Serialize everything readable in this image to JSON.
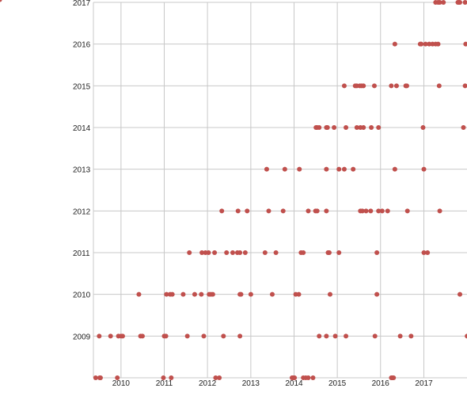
{
  "chart_data": {
    "type": "scatter",
    "title": "",
    "xlabel": "",
    "ylabel": "",
    "grid": true,
    "legend": "none",
    "colors": {
      "marker": "#c0504d",
      "grid": "#c8c8c8",
      "axis": "#333333"
    },
    "x_axis": {
      "kind": "date",
      "range": [
        "2009-05-13",
        "2017-12-31"
      ],
      "ticks": [
        {
          "value": "2010-01-01",
          "label": "2010"
        },
        {
          "value": "2011-01-01",
          "label": "2011"
        },
        {
          "value": "2012-01-01",
          "label": "2012"
        },
        {
          "value": "2013-01-01",
          "label": "2013"
        },
        {
          "value": "2014-01-01",
          "label": "2014"
        },
        {
          "value": "2015-01-01",
          "label": "2015"
        },
        {
          "value": "2016-01-01",
          "label": "2016"
        },
        {
          "value": "2017-01-01",
          "label": "2017"
        }
      ]
    },
    "y_axis": {
      "kind": "category",
      "categories": [
        "2008",
        "2009",
        "2010",
        "2011",
        "2012",
        "2013",
        "2014",
        "2015",
        "2016",
        "2017"
      ],
      "tick_labels": [
        "",
        "2009",
        "2010",
        "2011",
        "2012",
        "2013",
        "2014",
        "2015",
        "2016",
        "2017"
      ]
    },
    "series": [
      {
        "y": "2008",
        "x": [
          "2009-06-01",
          "2009-07-05",
          "2009-07-12",
          "2009-12-01",
          "2010-12-25",
          "2011-03-01",
          "2012-03-10",
          "2012-04-10",
          "2013-12-15",
          "2013-12-25",
          "2014-01-05",
          "2014-03-20",
          "2014-04-10",
          "2014-05-01",
          "2014-06-10",
          "2016-04-01",
          "2016-04-10",
          "2016-04-20"
        ]
      },
      {
        "y": "2009",
        "x": [
          "2009-07-01",
          "2009-10-05",
          "2009-12-10",
          "2010-01-01",
          "2010-01-15",
          "2010-06-15",
          "2010-07-01",
          "2011-01-01",
          "2011-01-15",
          "2011-07-15",
          "2011-12-01",
          "2012-05-15",
          "2012-10-01",
          "2014-08-01",
          "2014-10-01",
          "2014-12-15",
          "2015-03-15",
          "2015-11-15",
          "2016-06-15",
          "2016-09-15",
          "2018-01-01"
        ]
      },
      {
        "y": "2010",
        "x": [
          "2010-06-01",
          "2011-01-20",
          "2011-02-20",
          "2011-03-10",
          "2011-06-10",
          "2011-09-15",
          "2011-11-10",
          "2012-01-15",
          "2012-01-30",
          "2012-02-15",
          "2012-10-01",
          "2012-10-10",
          "2013-01-01",
          "2013-07-01",
          "2014-01-15",
          "2014-02-10",
          "2014-11-01",
          "2015-12-01",
          "2017-11-01"
        ]
      },
      {
        "y": "2011",
        "x": [
          "2011-08-01",
          "2011-11-15",
          "2011-12-15",
          "2012-01-10",
          "2012-03-01",
          "2012-06-10",
          "2012-08-01",
          "2012-09-10",
          "2012-10-01",
          "2012-11-15",
          "2013-05-01",
          "2013-08-01",
          "2014-03-01",
          "2014-03-20",
          "2014-10-15",
          "2014-10-25",
          "2015-01-15",
          "2015-12-01",
          "2017-01-01",
          "2017-02-01"
        ]
      },
      {
        "y": "2012",
        "x": [
          "2012-05-01",
          "2012-09-15",
          "2012-12-01",
          "2013-06-01",
          "2013-10-01",
          "2014-05-01",
          "2014-07-01",
          "2014-07-15",
          "2014-10-01",
          "2015-07-15",
          "2015-08-01",
          "2015-09-01",
          "2015-10-10",
          "2015-12-15",
          "2016-01-15",
          "2016-03-01",
          "2016-08-15",
          "2017-05-15"
        ]
      },
      {
        "y": "2013",
        "x": [
          "2013-05-15",
          "2013-10-15",
          "2014-02-15",
          "2014-10-01",
          "2015-01-15",
          "2015-03-01",
          "2015-05-15",
          "2016-05-01",
          "2017-01-01"
        ]
      },
      {
        "y": "2014",
        "x": [
          "2014-07-05",
          "2014-07-15",
          "2014-08-01",
          "2014-10-01",
          "2014-10-10",
          "2014-12-05",
          "2015-03-15",
          "2015-06-15",
          "2015-07-15",
          "2015-08-10",
          "2015-10-15",
          "2015-12-15",
          "2016-12-25",
          "2017-12-01"
        ]
      },
      {
        "y": "2015",
        "x": [
          "2015-03-01",
          "2015-06-01",
          "2015-06-15",
          "2015-07-10",
          "2015-07-25",
          "2015-08-10",
          "2015-11-10",
          "2016-04-01",
          "2016-05-15",
          "2016-08-01",
          "2016-08-10",
          "2017-05-10",
          "2017-12-15"
        ]
      },
      {
        "y": "2016",
        "x": [
          "2016-05-01",
          "2016-12-01",
          "2016-12-10",
          "2017-01-15",
          "2017-02-15",
          "2017-03-15",
          "2017-04-10",
          "2017-05-01",
          "2017-12-20"
        ]
      },
      {
        "y": "2017",
        "x": [
          "2017-04-10",
          "2017-05-01",
          "2017-05-15",
          "2017-06-15",
          "2017-10-15",
          "2017-10-25",
          "2017-11-01",
          "2017-12-15"
        ]
      }
    ]
  }
}
